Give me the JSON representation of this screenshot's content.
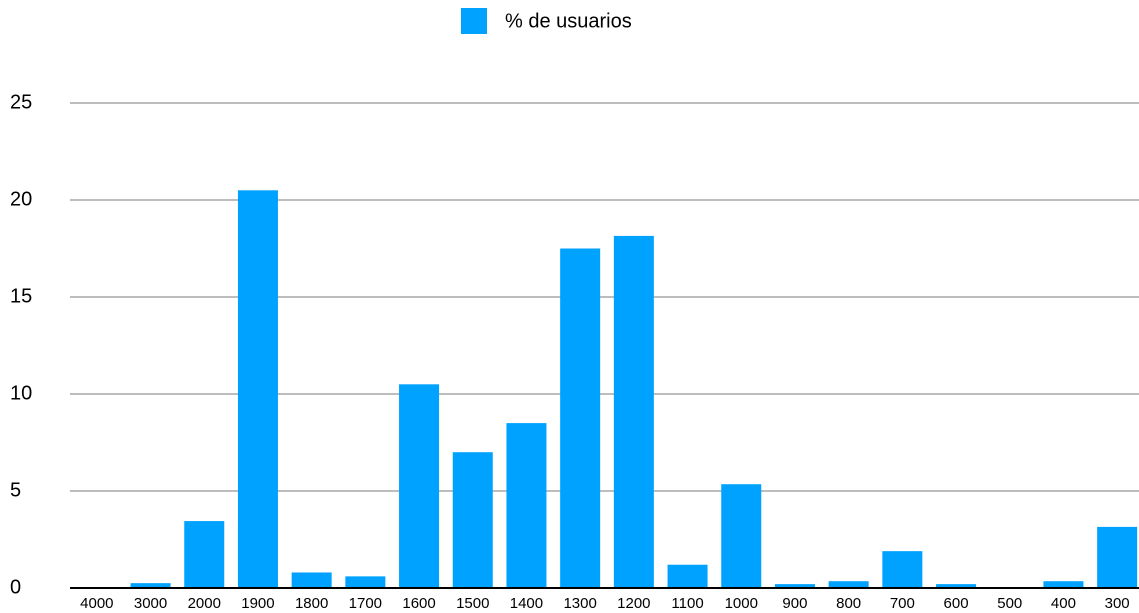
{
  "chart_data": {
    "type": "bar",
    "categories": [
      "4000",
      "3000",
      "2000",
      "1900",
      "1800",
      "1700",
      "1600",
      "1500",
      "1400",
      "1300",
      "1200",
      "1100",
      "1000",
      "900",
      "800",
      "700",
      "600",
      "500",
      "400",
      "300"
    ],
    "series": [
      {
        "name": "% de usuarios",
        "color": "#00a2ff",
        "values": [
          0,
          0.25,
          3.45,
          20.5,
          0.8,
          0.6,
          10.5,
          7,
          8.5,
          17.5,
          18.15,
          1.2,
          5.35,
          0.2,
          0.35,
          1.9,
          0.2,
          0,
          0.35,
          3.15
        ]
      }
    ],
    "ylim": [
      0,
      25
    ],
    "yticks": [
      0,
      5,
      10,
      15,
      20,
      25
    ],
    "grid": true,
    "legend": "top"
  }
}
